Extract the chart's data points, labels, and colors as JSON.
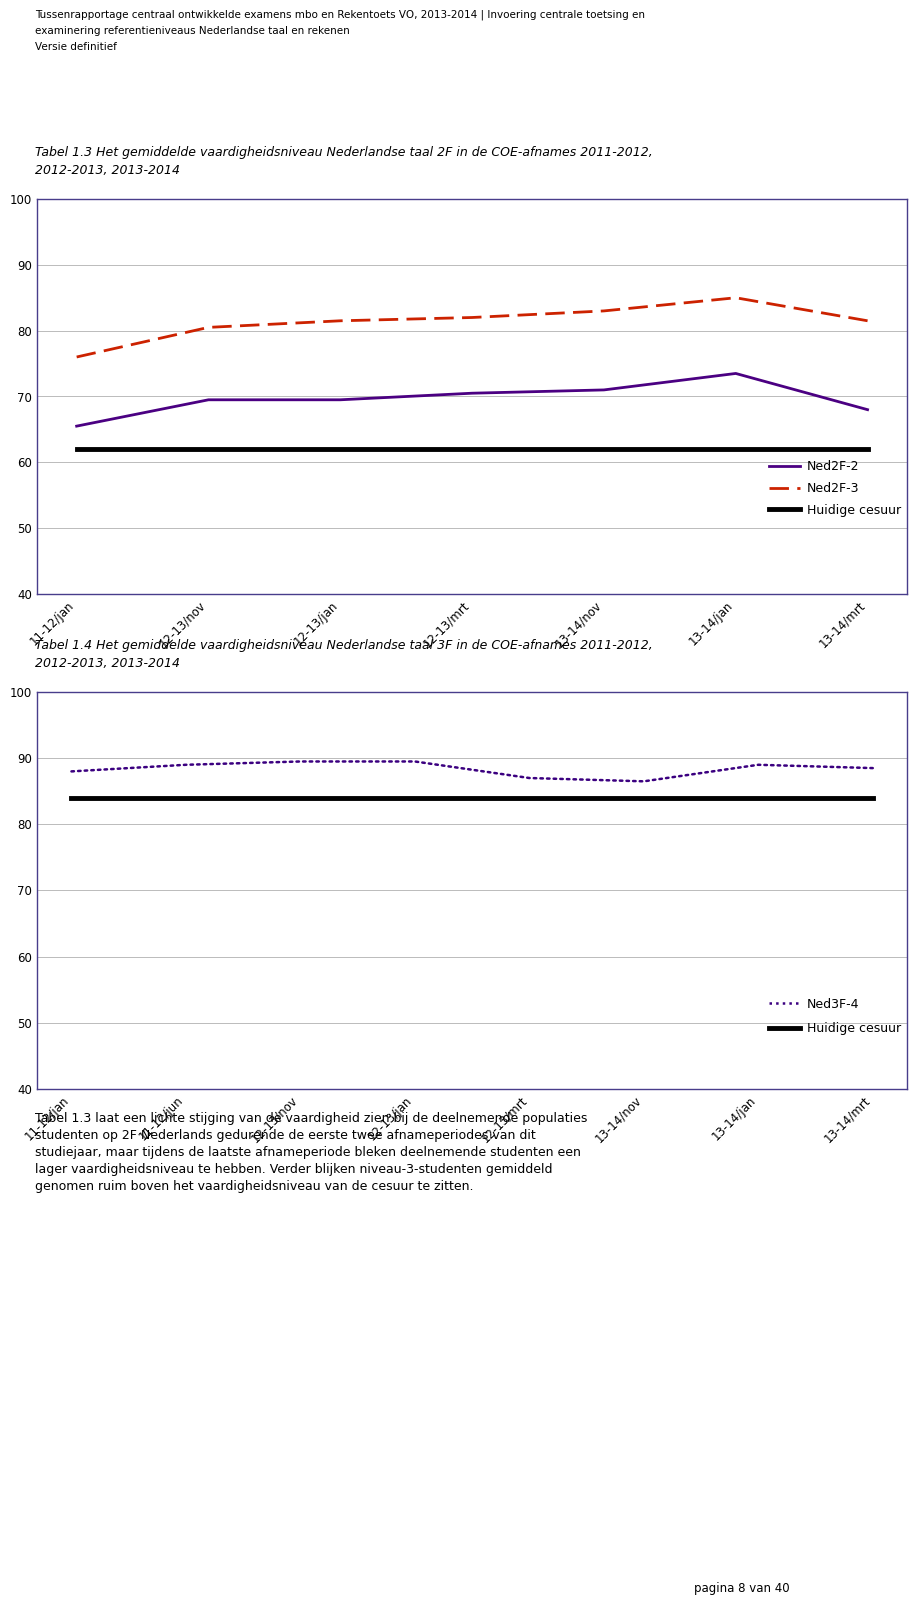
{
  "header_line1": "Tussenrapportage centraal ontwikkelde examens mbo en Rekentoets VO, 2013-2014 | Invoering centrale toetsing en",
  "header_line2": "examinering referentieniveaus Nederlandse taal en rekenen",
  "header_line3": "Versie definitief",
  "chart1_title_line1": "Tabel 1.3 Het gemiddelde vaardigheidsniveau Nederlandse taal 2F in de COE-afnames 2011-2012,",
  "chart1_title_line2": "2012-2013, 2013-2014",
  "chart1_xticklabels": [
    "11-12/jan",
    "12-13/nov",
    "12-13/jan",
    "12-13/mrt",
    "13-14/nov",
    "13-14/jan",
    "13-14/mrt"
  ],
  "chart1_ylim": [
    40,
    100
  ],
  "chart1_yticks": [
    40,
    50,
    60,
    70,
    80,
    90,
    100
  ],
  "chart1_ned2f2": [
    65.5,
    69.5,
    69.5,
    70.5,
    71.0,
    73.5,
    68.0
  ],
  "chart1_ned2f3": [
    76.0,
    80.5,
    81.5,
    82.0,
    83.0,
    85.0,
    81.5
  ],
  "chart1_cesuur": [
    62.0,
    62.0,
    62.0,
    62.0,
    62.0,
    62.0,
    62.0
  ],
  "chart2_title_line1": "Tabel 1.4 Het gemiddelde vaardigheidsniveau Nederlandse taal 3F in de COE-afnames 2011-2012,",
  "chart2_title_line2": "2012-2013, 2013-2014",
  "chart2_xticklabels": [
    "11-12/jan",
    "11-12/jun",
    "12-13/nov",
    "12-13/jan",
    "12-13/mrt",
    "13-14/nov",
    "13-14/jan",
    "13-14/mrt"
  ],
  "chart2_ylim": [
    40,
    100
  ],
  "chart2_yticks": [
    40,
    50,
    60,
    70,
    80,
    90,
    100
  ],
  "chart2_ned3f4": [
    88.0,
    89.0,
    89.5,
    89.5,
    87.0,
    86.5,
    89.0,
    88.5
  ],
  "chart2_cesuur": [
    84.0,
    84.0,
    84.0,
    84.0,
    84.0,
    84.0,
    84.0,
    84.0
  ],
  "color_ned2f2": "#4B0082",
  "color_ned2f3": "#CC2200",
  "color_cesuur_chart1": "#000000",
  "color_cesuur_chart2": "#000000",
  "color_ned3f4": "#3B0080",
  "chart_border_color": "#483D8B",
  "footer_text_line1": "Tabel 1.3 laat een lichte stijging van de vaardigheid zien bij de deelnemende populaties",
  "footer_text_line2": "studenten op 2F Nederlands gedurende de eerste twee afnameperiodes van dit",
  "footer_text_line3": "studiejaar, maar tijdens de laatste afnameperiode bleken deelnemende studenten een",
  "footer_text_line4": "lager vaardigheidsniveau te hebben. Verder blijken niveau-3-studenten gemiddeld",
  "footer_text_line5": "genomen ruim boven het vaardigheidsniveau van de cesuur te zitten.",
  "page_number": "pagina 8 van 40",
  "background_color": "#ffffff"
}
